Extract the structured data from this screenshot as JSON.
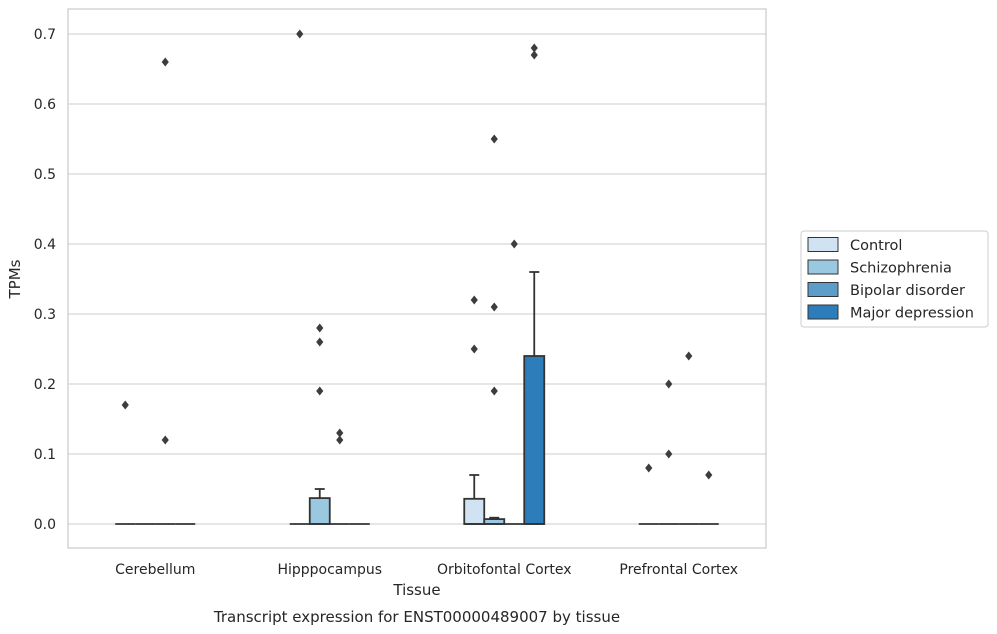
{
  "chart_data": {
    "type": "box",
    "title": "",
    "caption": "Transcript expression for ENST00000489007 by tissue",
    "xlabel": "Tissue",
    "ylabel": "TPMs",
    "ylim": [
      -0.035,
      0.735
    ],
    "yticks": [
      "0.0",
      "0.1",
      "0.2",
      "0.3",
      "0.4",
      "0.5",
      "0.6",
      "0.7"
    ],
    "categories": [
      "Cerebellum",
      "Hipppocampus",
      "Orbitofontal Cortex",
      "Prefrontal Cortex"
    ],
    "grid": "horizontal",
    "legend_position": "right",
    "series": [
      {
        "name": "Control",
        "color": "#d1e2f2",
        "boxes": [
          {
            "q1": 0,
            "median": 0,
            "q3": 0,
            "whisker_low": 0,
            "whisker_high": 0,
            "outliers": [
              0.17
            ]
          },
          {
            "q1": 0,
            "median": 0,
            "q3": 0,
            "whisker_low": 0,
            "whisker_high": 0,
            "outliers": [
              0.7
            ]
          },
          {
            "q1": 0,
            "median": 0,
            "q3": 0.036,
            "whisker_low": 0,
            "whisker_high": 0.07,
            "outliers": [
              0.25,
              0.32
            ]
          },
          {
            "q1": 0,
            "median": 0,
            "q3": 0,
            "whisker_low": 0,
            "whisker_high": 0,
            "outliers": [
              0.08
            ]
          }
        ]
      },
      {
        "name": "Schizophrenia",
        "color": "#9ac8e0",
        "boxes": [
          {
            "q1": 0,
            "median": 0,
            "q3": 0,
            "whisker_low": 0,
            "whisker_high": 0,
            "outliers": []
          },
          {
            "q1": 0,
            "median": 0,
            "q3": 0.037,
            "whisker_low": 0,
            "whisker_high": 0.05,
            "outliers": [
              0.19,
              0.26,
              0.28
            ]
          },
          {
            "q1": 0,
            "median": 0,
            "q3": 0.007,
            "whisker_low": 0,
            "whisker_high": 0.009,
            "outliers": [
              0.19,
              0.31,
              0.55
            ]
          },
          {
            "q1": 0,
            "median": 0,
            "q3": 0,
            "whisker_low": 0,
            "whisker_high": 0,
            "outliers": [
              0.1,
              0.2
            ]
          }
        ]
      },
      {
        "name": "Bipolar disorder",
        "color": "#5b9ec9",
        "boxes": [
          {
            "q1": 0,
            "median": 0,
            "q3": 0,
            "whisker_low": 0,
            "whisker_high": 0,
            "outliers": [
              0.12,
              0.66
            ]
          },
          {
            "q1": 0,
            "median": 0,
            "q3": 0,
            "whisker_low": 0,
            "whisker_high": 0,
            "outliers": [
              0.12,
              0.13
            ]
          },
          {
            "q1": 0,
            "median": 0,
            "q3": 0,
            "whisker_low": 0,
            "whisker_high": 0,
            "outliers": [
              0.4
            ]
          },
          {
            "q1": 0,
            "median": 0,
            "q3": 0,
            "whisker_low": 0,
            "whisker_high": 0,
            "outliers": [
              0.24
            ]
          }
        ]
      },
      {
        "name": "Major depression",
        "color": "#2d7dbb",
        "boxes": [
          {
            "q1": 0,
            "median": 0,
            "q3": 0,
            "whisker_low": 0,
            "whisker_high": 0,
            "outliers": []
          },
          {
            "q1": 0,
            "median": 0,
            "q3": 0,
            "whisker_low": 0,
            "whisker_high": 0,
            "outliers": []
          },
          {
            "q1": 0,
            "median": 0,
            "q3": 0.24,
            "whisker_low": 0,
            "whisker_high": 0.36,
            "outliers": [
              0.67,
              0.68
            ]
          },
          {
            "q1": 0,
            "median": 0,
            "q3": 0,
            "whisker_low": 0,
            "whisker_high": 0,
            "outliers": [
              0.07
            ]
          }
        ]
      }
    ]
  }
}
